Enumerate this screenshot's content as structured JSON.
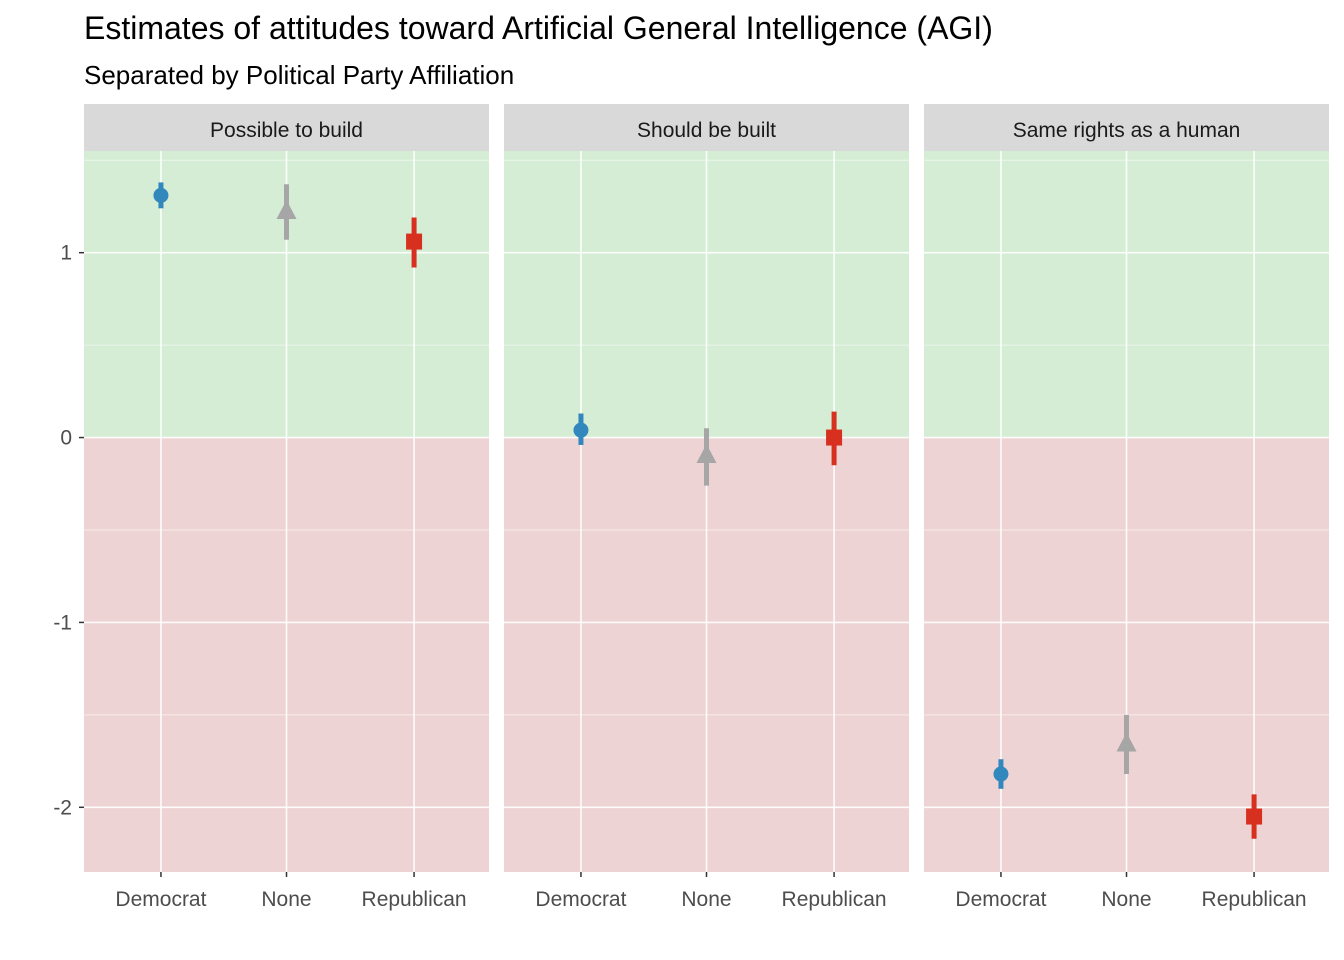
{
  "chart_data": {
    "type": "scatter",
    "title": "Estimates of attitudes toward Artificial General Intelligence (AGI)",
    "subtitle": "Separated by Political Party Affiliation",
    "xlabel": "",
    "ylabel": "",
    "categories": [
      "Democrat",
      "None",
      "Republican"
    ],
    "ylim": [
      -2.35,
      1.55
    ],
    "y_ticks": [
      1,
      0,
      -1,
      -2
    ],
    "y_tick_labels": [
      "1",
      "0",
      "-1",
      "-2"
    ],
    "grid": true,
    "background_bands": [
      {
        "from": 0,
        "to": 1.55,
        "color": "#d4edd4"
      },
      {
        "from": -2.35,
        "to": 0,
        "color": "#eed3d5"
      }
    ],
    "party_styles": [
      {
        "party": "Democrat",
        "color": "#3288bd",
        "shape": "circle"
      },
      {
        "party": "None",
        "color": "#a6a6a6",
        "shape": "triangle"
      },
      {
        "party": "Republican",
        "color": "#d7301f",
        "shape": "square"
      }
    ],
    "panels": [
      {
        "label": "Possible to build",
        "points": [
          {
            "party": "Democrat",
            "estimate": 1.31,
            "low": 1.24,
            "high": 1.38
          },
          {
            "party": "None",
            "estimate": 1.22,
            "low": 1.07,
            "high": 1.37
          },
          {
            "party": "Republican",
            "estimate": 1.06,
            "low": 0.92,
            "high": 1.19
          }
        ]
      },
      {
        "label": "Should be built",
        "points": [
          {
            "party": "Democrat",
            "estimate": 0.04,
            "low": -0.04,
            "high": 0.13
          },
          {
            "party": "None",
            "estimate": -0.1,
            "low": -0.26,
            "high": 0.05
          },
          {
            "party": "Republican",
            "estimate": 0.0,
            "low": -0.15,
            "high": 0.14
          }
        ]
      },
      {
        "label": "Same rights as a human",
        "points": [
          {
            "party": "Democrat",
            "estimate": -1.82,
            "low": -1.9,
            "high": -1.74
          },
          {
            "party": "None",
            "estimate": -1.66,
            "low": -1.82,
            "high": -1.5
          },
          {
            "party": "Republican",
            "estimate": -2.05,
            "low": -2.17,
            "high": -1.93
          }
        ]
      }
    ]
  }
}
